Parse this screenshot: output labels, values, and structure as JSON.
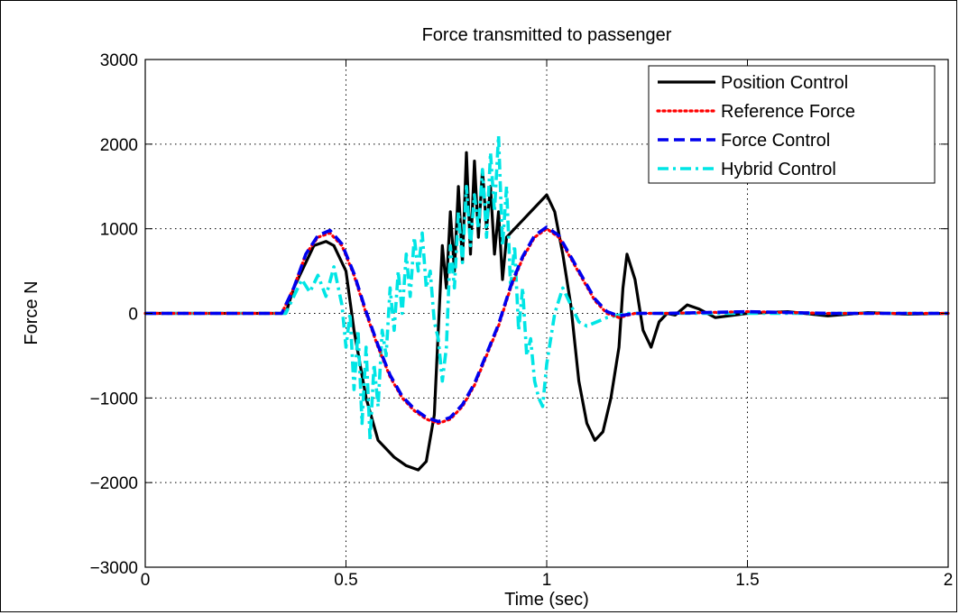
{
  "chart_data": {
    "type": "line",
    "title": "Force transmitted to passenger",
    "xlabel": "Time (sec)",
    "ylabel": "Force N",
    "xlim": [
      0,
      2
    ],
    "ylim": [
      -3000,
      3000
    ],
    "x_ticks": [
      0,
      0.5,
      1,
      1.5,
      2
    ],
    "x_tick_labels": [
      "0",
      "0.5",
      "1",
      "1.5",
      "2"
    ],
    "y_ticks": [
      -3000,
      -2000,
      -1000,
      0,
      1000,
      2000,
      3000
    ],
    "y_tick_labels": [
      "−3000",
      "−2000",
      "−1000",
      "0",
      "1000",
      "2000",
      "3000"
    ],
    "grid": true,
    "legend_position": "top-right",
    "series": [
      {
        "name": "Position Control",
        "color": "#000000",
        "style": "solid",
        "x": [
          0,
          0.35,
          0.37,
          0.4,
          0.42,
          0.45,
          0.47,
          0.5,
          0.52,
          0.55,
          0.58,
          0.62,
          0.65,
          0.68,
          0.7,
          0.72,
          0.73,
          0.74,
          0.75,
          0.76,
          0.77,
          0.78,
          0.79,
          0.8,
          0.81,
          0.82,
          0.83,
          0.84,
          0.85,
          0.86,
          0.87,
          0.88,
          0.89,
          0.9,
          0.92,
          0.94,
          0.96,
          0.98,
          1.0,
          1.02,
          1.04,
          1.06,
          1.08,
          1.1,
          1.12,
          1.14,
          1.16,
          1.18,
          1.19,
          1.2,
          1.22,
          1.24,
          1.26,
          1.28,
          1.3,
          1.32,
          1.35,
          1.38,
          1.42,
          1.5,
          1.6,
          1.7,
          1.8,
          1.9,
          2.0
        ],
        "y": [
          0,
          0,
          300,
          600,
          800,
          850,
          800,
          500,
          -200,
          -1000,
          -1500,
          -1700,
          -1800,
          -1850,
          -1750,
          -1200,
          -200,
          800,
          300,
          1200,
          500,
          1500,
          600,
          1900,
          700,
          1800,
          900,
          1700,
          1000,
          1500,
          700,
          1200,
          400,
          900,
          1000,
          1100,
          1200,
          1300,
          1400,
          1200,
          700,
          100,
          -800,
          -1300,
          -1500,
          -1400,
          -1000,
          -400,
          300,
          700,
          400,
          -200,
          -400,
          -100,
          0,
          -20,
          100,
          50,
          -50,
          0,
          20,
          -30,
          10,
          -10,
          0
        ]
      },
      {
        "name": "Reference Force",
        "color": "#ff0000",
        "style": "dotted",
        "x": [
          0,
          0.34,
          0.37,
          0.4,
          0.43,
          0.46,
          0.49,
          0.52,
          0.55,
          0.58,
          0.61,
          0.64,
          0.67,
          0.7,
          0.73,
          0.76,
          0.79,
          0.82,
          0.85,
          0.88,
          0.91,
          0.94,
          0.97,
          1.0,
          1.03,
          1.06,
          1.09,
          1.12,
          1.15,
          1.18,
          1.22,
          1.3,
          1.5,
          1.7,
          2.0
        ],
        "y": [
          0,
          0,
          300,
          700,
          900,
          950,
          800,
          450,
          0,
          -400,
          -750,
          -1000,
          -1150,
          -1250,
          -1300,
          -1250,
          -1100,
          -850,
          -500,
          -150,
          300,
          650,
          900,
          1000,
          900,
          650,
          400,
          150,
          0,
          -50,
          0,
          0,
          20,
          0,
          0
        ]
      },
      {
        "name": "Force Control",
        "color": "#0000ee",
        "style": "dashed",
        "x": [
          0,
          0.34,
          0.37,
          0.4,
          0.43,
          0.46,
          0.49,
          0.52,
          0.55,
          0.58,
          0.61,
          0.64,
          0.67,
          0.7,
          0.73,
          0.76,
          0.79,
          0.82,
          0.85,
          0.88,
          0.91,
          0.94,
          0.97,
          1.0,
          1.03,
          1.06,
          1.09,
          1.12,
          1.15,
          1.18,
          1.22,
          1.3,
          1.5,
          1.7,
          2.0
        ],
        "y": [
          0,
          0,
          300,
          700,
          920,
          980,
          820,
          470,
          20,
          -380,
          -730,
          -980,
          -1130,
          -1230,
          -1280,
          -1230,
          -1080,
          -830,
          -480,
          -130,
          320,
          670,
          920,
          1020,
          920,
          670,
          420,
          170,
          20,
          -30,
          0,
          0,
          20,
          0,
          0
        ]
      },
      {
        "name": "Hybrid Control",
        "color": "#00e5e5",
        "style": "dashdot",
        "x": [
          0,
          0.35,
          0.37,
          0.39,
          0.41,
          0.43,
          0.45,
          0.47,
          0.49,
          0.5,
          0.51,
          0.52,
          0.53,
          0.54,
          0.55,
          0.56,
          0.57,
          0.58,
          0.59,
          0.6,
          0.61,
          0.62,
          0.63,
          0.64,
          0.65,
          0.66,
          0.67,
          0.68,
          0.69,
          0.7,
          0.71,
          0.72,
          0.73,
          0.74,
          0.75,
          0.76,
          0.77,
          0.78,
          0.79,
          0.8,
          0.81,
          0.82,
          0.83,
          0.84,
          0.85,
          0.86,
          0.87,
          0.88,
          0.89,
          0.9,
          0.91,
          0.92,
          0.93,
          0.94,
          0.95,
          0.96,
          0.97,
          0.98,
          0.99,
          1.0,
          1.02,
          1.04,
          1.06,
          1.08,
          1.1,
          1.15,
          1.2,
          1.3,
          1.5,
          1.7,
          2.0
        ],
        "y": [
          0,
          0,
          200,
          400,
          250,
          450,
          200,
          550,
          100,
          -400,
          0,
          -900,
          -200,
          -1300,
          -400,
          -1500,
          -600,
          -1100,
          -200,
          -500,
          300,
          -200,
          500,
          0,
          700,
          200,
          900,
          500,
          950,
          300,
          500,
          -100,
          -300,
          -800,
          -400,
          800,
          300,
          1200,
          600,
          1500,
          800,
          1400,
          1000,
          1700,
          900,
          1900,
          1200,
          2100,
          800,
          1500,
          300,
          800,
          -200,
          300,
          -500,
          -300,
          -800,
          -1000,
          -1100,
          -600,
          0,
          300,
          100,
          -100,
          -150,
          -50,
          0,
          0,
          0,
          0,
          0
        ]
      }
    ]
  }
}
